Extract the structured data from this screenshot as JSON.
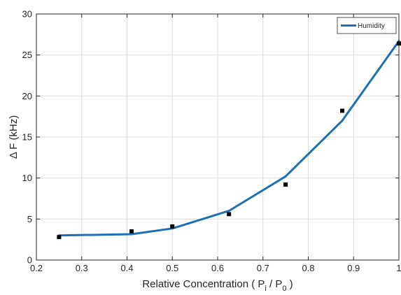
{
  "chart_data": {
    "type": "line",
    "xlabel": "Relative Concentration ( P",
    "xlabel_sub_i": "i",
    "xlabel_mid": " / P",
    "xlabel_sub_0": "0",
    "xlabel_end": "  )",
    "ylabel": "Δ  F  (kHz)",
    "xlim": [
      0.2,
      1.0
    ],
    "ylim": [
      0,
      30
    ],
    "x_ticks": [
      0.2,
      0.3,
      0.4,
      0.5,
      0.6,
      0.7,
      0.8,
      0.9,
      1.0
    ],
    "x_tick_labels": [
      "0.2",
      "0.3",
      "0.4",
      "0.5",
      "0.6",
      "0.7",
      "0.8",
      "0.9",
      "1"
    ],
    "y_ticks": [
      0,
      5,
      10,
      15,
      20,
      25,
      30
    ],
    "y_tick_labels": [
      "0",
      "5",
      "10",
      "15",
      "20",
      "25",
      "30"
    ],
    "grid": true,
    "legend_position": "top-right",
    "series": [
      {
        "name": "Humidity",
        "color": "#1f6fb4",
        "x": [
          0.25,
          0.41,
          0.5,
          0.625,
          0.75,
          0.875,
          1.0
        ],
        "values": [
          3.0,
          3.15,
          3.85,
          6.0,
          10.2,
          17.0,
          26.7
        ]
      }
    ],
    "measurements": {
      "color": "#000000",
      "x": [
        0.25,
        0.41,
        0.5,
        0.625,
        0.75,
        0.875,
        1.0
      ],
      "y": [
        2.8,
        3.5,
        4.1,
        5.6,
        9.2,
        18.2,
        26.4
      ],
      "err": [
        0.2,
        0.2,
        0.2,
        0.2,
        0.2,
        0.2,
        0.2
      ]
    }
  }
}
